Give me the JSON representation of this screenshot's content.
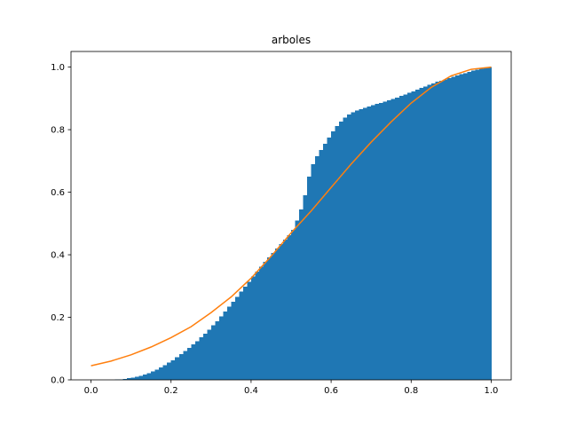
{
  "chart_data": {
    "type": "bar",
    "title": "arboles",
    "xlabel": "",
    "ylabel": "",
    "xlim": [
      -0.05,
      1.05
    ],
    "ylim": [
      0,
      1.05
    ],
    "grid": false,
    "xticks": [
      0.0,
      0.2,
      0.4,
      0.6,
      0.8,
      1.0
    ],
    "xtick_labels": [
      "0.0",
      "0.2",
      "0.4",
      "0.6",
      "0.8",
      "1.0"
    ],
    "yticks": [
      0.0,
      0.2,
      0.4,
      0.6,
      0.8,
      1.0
    ],
    "ytick_labels": [
      "0.0",
      "0.2",
      "0.4",
      "0.6",
      "0.8",
      "1.0"
    ],
    "series": [
      {
        "kind": "histogram",
        "color": "#1f77b4",
        "bin_width": 0.01,
        "x": [
          0.06,
          0.07,
          0.08,
          0.09,
          0.1,
          0.11,
          0.12,
          0.13,
          0.14,
          0.15,
          0.16,
          0.17,
          0.18,
          0.19,
          0.2,
          0.21,
          0.22,
          0.23,
          0.24,
          0.25,
          0.26,
          0.27,
          0.28,
          0.29,
          0.3,
          0.31,
          0.32,
          0.33,
          0.34,
          0.35,
          0.36,
          0.37,
          0.38,
          0.39,
          0.4,
          0.41,
          0.42,
          0.43,
          0.44,
          0.45,
          0.46,
          0.47,
          0.48,
          0.49,
          0.5,
          0.51,
          0.52,
          0.53,
          0.54,
          0.55,
          0.56,
          0.57,
          0.58,
          0.59,
          0.6,
          0.61,
          0.62,
          0.63,
          0.64,
          0.65,
          0.66,
          0.67,
          0.68,
          0.69,
          0.7,
          0.71,
          0.72,
          0.73,
          0.74,
          0.75,
          0.76,
          0.77,
          0.78,
          0.79,
          0.8,
          0.81,
          0.82,
          0.83,
          0.84,
          0.85,
          0.86,
          0.87,
          0.88,
          0.89,
          0.9,
          0.91,
          0.92,
          0.93,
          0.94,
          0.95,
          0.96,
          0.97,
          0.98,
          0.99
        ],
        "values": [
          0.001,
          0.002,
          0.003,
          0.005,
          0.007,
          0.01,
          0.013,
          0.017,
          0.022,
          0.027,
          0.033,
          0.04,
          0.047,
          0.055,
          0.063,
          0.072,
          0.082,
          0.092,
          0.102,
          0.113,
          0.124,
          0.136,
          0.148,
          0.161,
          0.174,
          0.188,
          0.203,
          0.218,
          0.234,
          0.25,
          0.266,
          0.282,
          0.298,
          0.314,
          0.33,
          0.346,
          0.362,
          0.377,
          0.392,
          0.406,
          0.42,
          0.434,
          0.448,
          0.462,
          0.48,
          0.51,
          0.545,
          0.59,
          0.65,
          0.69,
          0.715,
          0.735,
          0.755,
          0.775,
          0.795,
          0.812,
          0.826,
          0.838,
          0.848,
          0.856,
          0.862,
          0.866,
          0.87,
          0.874,
          0.878,
          0.882,
          0.886,
          0.89,
          0.894,
          0.898,
          0.903,
          0.908,
          0.913,
          0.918,
          0.923,
          0.928,
          0.933,
          0.938,
          0.943,
          0.948,
          0.953,
          0.957,
          0.961,
          0.965,
          0.969,
          0.973,
          0.977,
          0.981,
          0.985,
          0.989,
          0.992,
          0.995,
          0.998,
          1.0
        ]
      },
      {
        "kind": "line",
        "color": "#ff7f0e",
        "x": [
          0.0,
          0.05,
          0.1,
          0.15,
          0.2,
          0.25,
          0.3,
          0.35,
          0.4,
          0.45,
          0.5,
          0.55,
          0.6,
          0.65,
          0.7,
          0.75,
          0.8,
          0.85,
          0.9,
          0.95,
          1.0
        ],
        "values": [
          0.045,
          0.06,
          0.08,
          0.105,
          0.135,
          0.17,
          0.215,
          0.265,
          0.325,
          0.395,
          0.47,
          0.54,
          0.615,
          0.69,
          0.76,
          0.825,
          0.885,
          0.935,
          0.972,
          0.993,
          1.0
        ]
      }
    ]
  }
}
